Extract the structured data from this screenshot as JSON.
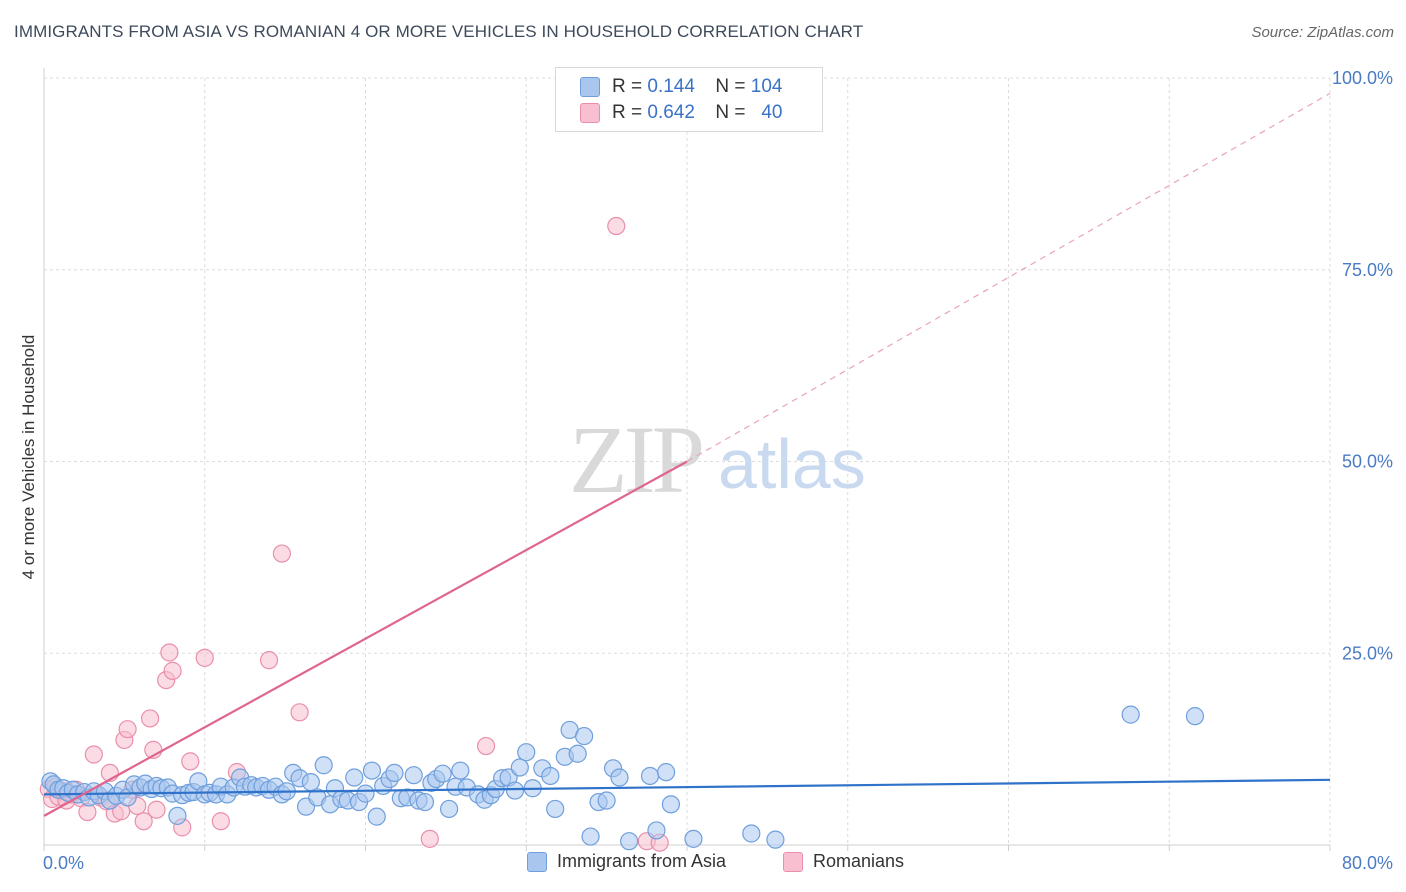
{
  "title": "IMMIGRANTS FROM ASIA VS ROMANIAN 4 OR MORE VEHICLES IN HOUSEHOLD CORRELATION CHART",
  "source": "Source: ZipAtlas.com",
  "watermark": {
    "zip": "ZIP",
    "atlas": "atlas"
  },
  "legend": {
    "rows": [
      {
        "r_label": "R =",
        "r_value": "0.144",
        "n_label": "N =",
        "n_value": "104",
        "color": "#a9c6ee",
        "border": "#6f9fdc"
      },
      {
        "r_label": "R =",
        "r_value": "0.642",
        "n_label": "N =",
        "n_value": "40",
        "color": "#f7bfd0",
        "border": "#ea8fab"
      }
    ]
  },
  "bottom_legend": [
    {
      "label": "Immigrants from Asia",
      "color": "#a9c6ee",
      "border": "#6f9fdc"
    },
    {
      "label": "Romanians",
      "color": "#f7bfd0",
      "border": "#ea8fab"
    }
  ],
  "chart_data": {
    "type": "scatter",
    "title": "IMMIGRANTS FROM ASIA VS ROMANIAN 4 OR MORE VEHICLES IN HOUSEHOLD CORRELATION CHART",
    "xlabel": "",
    "ylabel": "4 or more Vehicles in Household",
    "xlim": [
      0,
      80
    ],
    "ylim": [
      0,
      100
    ],
    "x_tick_labels": [
      "0.0%",
      "80.0%"
    ],
    "y_ticks": [
      25,
      50,
      75,
      100
    ],
    "y_tick_labels": [
      "25.0%",
      "50.0%",
      "75.0%",
      "100.0%"
    ],
    "grid": true,
    "series": [
      {
        "name": "Immigrants from Asia",
        "color": "#a9c6ee",
        "stroke": "#6f9fdc",
        "trend": {
          "x0": 0,
          "y0": 6.6,
          "x1": 80,
          "y1": 8.5,
          "color": "#2f72c9"
        },
        "points": [
          [
            0.4,
            8.3
          ],
          [
            0.6,
            7.9
          ],
          [
            0.9,
            7.2
          ],
          [
            1.2,
            7.4
          ],
          [
            1.5,
            6.8
          ],
          [
            1.8,
            7.2
          ],
          [
            2.1,
            6.6
          ],
          [
            2.5,
            6.9
          ],
          [
            2.8,
            6.2
          ],
          [
            3.1,
            7.0
          ],
          [
            3.4,
            6.5
          ],
          [
            3.8,
            7.0
          ],
          [
            4.1,
            5.8
          ],
          [
            4.5,
            6.4
          ],
          [
            4.9,
            7.2
          ],
          [
            5.2,
            6.2
          ],
          [
            5.6,
            7.9
          ],
          [
            6.0,
            7.5
          ],
          [
            6.3,
            8.0
          ],
          [
            6.7,
            7.3
          ],
          [
            7.0,
            7.7
          ],
          [
            7.3,
            7.4
          ],
          [
            7.7,
            7.5
          ],
          [
            8.0,
            6.7
          ],
          [
            8.3,
            3.8
          ],
          [
            8.6,
            6.5
          ],
          [
            9.0,
            6.8
          ],
          [
            9.3,
            6.9
          ],
          [
            9.6,
            8.3
          ],
          [
            10.0,
            6.6
          ],
          [
            10.3,
            6.8
          ],
          [
            10.7,
            6.6
          ],
          [
            11.0,
            7.6
          ],
          [
            11.4,
            6.6
          ],
          [
            11.8,
            7.5
          ],
          [
            12.2,
            8.8
          ],
          [
            12.5,
            7.6
          ],
          [
            12.9,
            7.8
          ],
          [
            13.2,
            7.5
          ],
          [
            13.6,
            7.7
          ],
          [
            14.0,
            7.2
          ],
          [
            14.4,
            7.6
          ],
          [
            14.8,
            6.6
          ],
          [
            15.1,
            7.0
          ],
          [
            15.5,
            9.4
          ],
          [
            15.9,
            8.7
          ],
          [
            16.3,
            5.0
          ],
          [
            16.6,
            8.2
          ],
          [
            17.0,
            6.2
          ],
          [
            17.4,
            10.4
          ],
          [
            17.8,
            5.3
          ],
          [
            18.1,
            7.4
          ],
          [
            18.5,
            6.0
          ],
          [
            18.9,
            5.8
          ],
          [
            19.3,
            8.8
          ],
          [
            19.6,
            5.6
          ],
          [
            20.0,
            6.7
          ],
          [
            20.4,
            9.7
          ],
          [
            20.7,
            3.7
          ],
          [
            21.1,
            7.7
          ],
          [
            21.5,
            8.6
          ],
          [
            21.8,
            9.4
          ],
          [
            22.2,
            6.1
          ],
          [
            22.6,
            6.2
          ],
          [
            23.0,
            9.1
          ],
          [
            23.3,
            5.8
          ],
          [
            23.7,
            5.6
          ],
          [
            24.1,
            8.1
          ],
          [
            24.4,
            8.6
          ],
          [
            24.8,
            9.3
          ],
          [
            25.2,
            4.7
          ],
          [
            25.6,
            7.6
          ],
          [
            25.9,
            9.7
          ],
          [
            26.3,
            7.5
          ],
          [
            27.0,
            6.6
          ],
          [
            27.4,
            5.9
          ],
          [
            27.8,
            6.5
          ],
          [
            28.1,
            7.3
          ],
          [
            28.5,
            8.7
          ],
          [
            28.9,
            8.8
          ],
          [
            29.3,
            7.1
          ],
          [
            29.6,
            10.1
          ],
          [
            30.0,
            12.1
          ],
          [
            30.4,
            7.4
          ],
          [
            31.0,
            10.0
          ],
          [
            31.5,
            9.0
          ],
          [
            31.8,
            4.7
          ],
          [
            32.4,
            11.5
          ],
          [
            32.7,
            15.0
          ],
          [
            33.2,
            11.9
          ],
          [
            33.6,
            14.2
          ],
          [
            34.0,
            1.1
          ],
          [
            34.5,
            5.6
          ],
          [
            35.0,
            5.8
          ],
          [
            35.4,
            10.0
          ],
          [
            35.8,
            8.8
          ],
          [
            36.4,
            0.5
          ],
          [
            37.7,
            9.0
          ],
          [
            38.1,
            1.9
          ],
          [
            38.7,
            9.5
          ],
          [
            39.0,
            5.3
          ],
          [
            40.4,
            0.8
          ],
          [
            44.0,
            1.5
          ],
          [
            45.5,
            0.7
          ],
          [
            67.6,
            17.0
          ],
          [
            71.6,
            16.8
          ]
        ]
      },
      {
        "name": "Romanians",
        "color": "#f7bfd0",
        "stroke": "#ea8fab",
        "trend": {
          "x0": 0,
          "y0": 3.8,
          "x1": 40,
          "y1": 50.0,
          "color": "#e0658d",
          "dash_x0": 40,
          "dash_y0": 50.0,
          "dash_x1": 80,
          "dash_y1": 98.0
        },
        "points": [
          [
            0.3,
            7.3
          ],
          [
            0.5,
            6.0
          ],
          [
            0.7,
            7.6
          ],
          [
            0.9,
            6.3
          ],
          [
            1.2,
            7.0
          ],
          [
            1.4,
            5.8
          ],
          [
            1.7,
            6.6
          ],
          [
            2.0,
            7.2
          ],
          [
            2.3,
            6.1
          ],
          [
            2.7,
            4.3
          ],
          [
            3.1,
            11.8
          ],
          [
            3.5,
            6.2
          ],
          [
            3.9,
            5.7
          ],
          [
            4.1,
            9.4
          ],
          [
            4.4,
            4.1
          ],
          [
            4.8,
            4.4
          ],
          [
            5.0,
            13.7
          ],
          [
            5.2,
            15.1
          ],
          [
            5.5,
            7.2
          ],
          [
            5.8,
            5.1
          ],
          [
            6.2,
            3.1
          ],
          [
            6.6,
            16.5
          ],
          [
            6.8,
            12.4
          ],
          [
            7.0,
            4.6
          ],
          [
            7.6,
            21.5
          ],
          [
            7.8,
            25.1
          ],
          [
            8.0,
            22.7
          ],
          [
            8.6,
            2.3
          ],
          [
            9.1,
            10.9
          ],
          [
            10.0,
            24.4
          ],
          [
            11.0,
            3.1
          ],
          [
            12.0,
            9.5
          ],
          [
            14.0,
            24.1
          ],
          [
            14.8,
            38.0
          ],
          [
            15.9,
            17.3
          ],
          [
            24.0,
            0.8
          ],
          [
            27.5,
            12.9
          ],
          [
            35.6,
            80.7
          ],
          [
            37.5,
            0.5
          ],
          [
            38.3,
            0.3
          ]
        ]
      }
    ]
  }
}
